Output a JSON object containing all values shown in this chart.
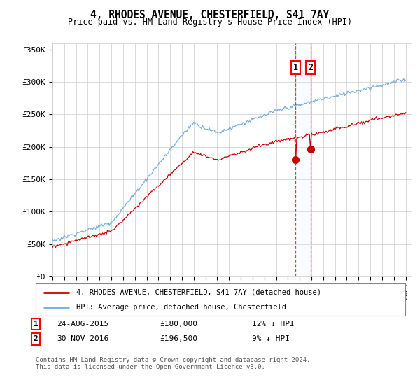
{
  "title": "4, RHODES AVENUE, CHESTERFIELD, S41 7AY",
  "subtitle": "Price paid vs. HM Land Registry's House Price Index (HPI)",
  "ylim": [
    0,
    360000
  ],
  "yticks": [
    0,
    50000,
    100000,
    150000,
    200000,
    250000,
    300000,
    350000
  ],
  "ytick_labels": [
    "£0",
    "£50K",
    "£100K",
    "£150K",
    "£200K",
    "£250K",
    "£300K",
    "£350K"
  ],
  "sale1_date": 2015.65,
  "sale1_price": 180000,
  "sale1_info": "24-AUG-2015",
  "sale1_amount": "£180,000",
  "sale1_hpi": "12% ↓ HPI",
  "sale2_date": 2016.92,
  "sale2_price": 196500,
  "sale2_info": "30-NOV-2016",
  "sale2_amount": "£196,500",
  "sale2_hpi": "9% ↓ HPI",
  "legend_label1": "4, RHODES AVENUE, CHESTERFIELD, S41 7AY (detached house)",
  "legend_label2": "HPI: Average price, detached house, Chesterfield",
  "footer": "Contains HM Land Registry data © Crown copyright and database right 2024.\nThis data is licensed under the Open Government Licence v3.0.",
  "line_color_red": "#cc0000",
  "line_color_blue": "#7aaddb",
  "shade_color": "#ddeeff",
  "grid_color": "#cccccc",
  "background_color": "#ffffff"
}
